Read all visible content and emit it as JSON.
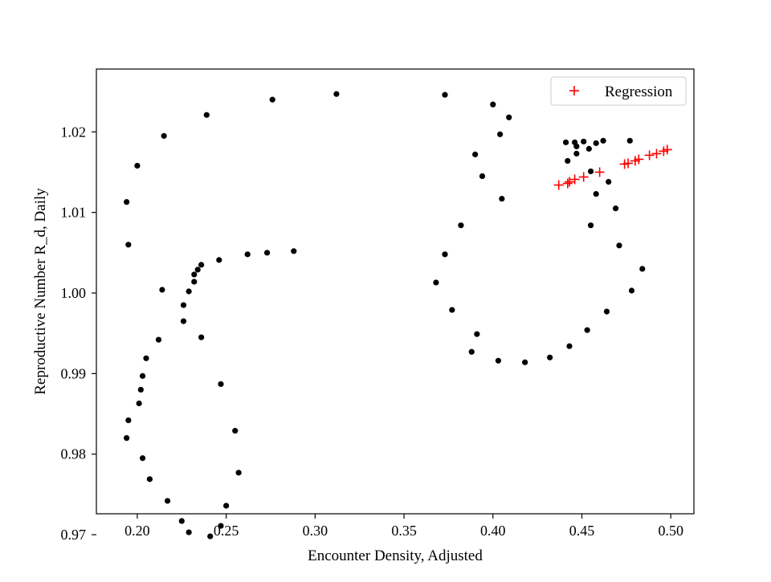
{
  "chart_data": {
    "type": "scatter",
    "title": "",
    "xlabel": "Encounter Density, Adjusted",
    "ylabel": "Reproductive Number R_d, Daily",
    "xlim": [
      0.177,
      0.513
    ],
    "ylim": [
      0.9726,
      1.0278
    ],
    "x_ticks": [
      0.2,
      0.25,
      0.3,
      0.35,
      0.4,
      0.45,
      0.5
    ],
    "x_tick_labels": [
      "0.20",
      "0.25",
      "0.30",
      "0.35",
      "0.40",
      "0.45",
      "0.50"
    ],
    "y_ticks": [
      0.97,
      0.98,
      0.99,
      1.0,
      1.01,
      1.02
    ],
    "y_tick_labels": [
      "0.97",
      "0.98",
      "0.99",
      "1.00",
      "1.01",
      "1.02"
    ],
    "grid": false,
    "legend_position": "upper right",
    "series": [
      {
        "name": "",
        "marker": "dot",
        "color": "#000000",
        "points": [
          [
            0.194,
            1.0113
          ],
          [
            0.195,
            1.006
          ],
          [
            0.2,
            1.0158
          ],
          [
            0.215,
            1.0195
          ],
          [
            0.239,
            1.0221
          ],
          [
            0.276,
            1.024
          ],
          [
            0.312,
            1.0247
          ],
          [
            0.214,
            1.0004
          ],
          [
            0.226,
            0.9985
          ],
          [
            0.229,
            1.0002
          ],
          [
            0.232,
            1.0014
          ],
          [
            0.232,
            1.0023
          ],
          [
            0.234,
            1.0029
          ],
          [
            0.236,
            1.0035
          ],
          [
            0.246,
            1.0041
          ],
          [
            0.262,
            1.0048
          ],
          [
            0.273,
            1.005
          ],
          [
            0.288,
            1.0052
          ],
          [
            0.226,
            0.9965
          ],
          [
            0.236,
            0.9945
          ],
          [
            0.212,
            0.9942
          ],
          [
            0.205,
            0.9919
          ],
          [
            0.203,
            0.9897
          ],
          [
            0.202,
            0.988
          ],
          [
            0.201,
            0.9863
          ],
          [
            0.195,
            0.9842
          ],
          [
            0.194,
            0.982
          ],
          [
            0.203,
            0.9795
          ],
          [
            0.207,
            0.9769
          ],
          [
            0.217,
            0.9742
          ],
          [
            0.225,
            0.9717
          ],
          [
            0.229,
            0.9703
          ],
          [
            0.241,
            0.9698
          ],
          [
            0.247,
            0.9711
          ],
          [
            0.25,
            0.9736
          ],
          [
            0.257,
            0.9777
          ],
          [
            0.255,
            0.9829
          ],
          [
            0.247,
            0.9887
          ],
          [
            0.368,
            1.0013
          ],
          [
            0.373,
            1.0048
          ],
          [
            0.382,
            1.0084
          ],
          [
            0.39,
            1.0172
          ],
          [
            0.394,
            1.0145
          ],
          [
            0.4,
            1.0234
          ],
          [
            0.404,
            1.0197
          ],
          [
            0.405,
            1.0117
          ],
          [
            0.409,
            1.0218
          ],
          [
            0.373,
            1.0246
          ],
          [
            0.377,
            0.9979
          ],
          [
            0.391,
            0.9949
          ],
          [
            0.388,
            0.9927
          ],
          [
            0.403,
            0.9916
          ],
          [
            0.418,
            0.9914
          ],
          [
            0.432,
            0.992
          ],
          [
            0.443,
            0.9934
          ],
          [
            0.453,
            0.9954
          ],
          [
            0.464,
            0.9977
          ],
          [
            0.478,
            1.0003
          ],
          [
            0.484,
            1.003
          ],
          [
            0.471,
            1.0059
          ],
          [
            0.469,
            1.0105
          ],
          [
            0.455,
            1.0084
          ],
          [
            0.458,
            1.0123
          ],
          [
            0.465,
            1.0138
          ],
          [
            0.455,
            1.0151
          ],
          [
            0.441,
            1.0187
          ],
          [
            0.446,
            1.0187
          ],
          [
            0.447,
            1.0182
          ],
          [
            0.451,
            1.0188
          ],
          [
            0.454,
            1.0179
          ],
          [
            0.458,
            1.0186
          ],
          [
            0.462,
            1.0189
          ],
          [
            0.477,
            1.0189
          ],
          [
            0.447,
            1.0173
          ],
          [
            0.442,
            1.0164
          ]
        ]
      },
      {
        "name": "Regression",
        "marker": "plus",
        "color": "#ff0000",
        "points": [
          [
            0.437,
            1.0134
          ],
          [
            0.442,
            1.0136
          ],
          [
            0.443,
            1.0138
          ],
          [
            0.446,
            1.0141
          ],
          [
            0.451,
            1.0144
          ],
          [
            0.46,
            1.015
          ],
          [
            0.474,
            1.016
          ],
          [
            0.476,
            1.0161
          ],
          [
            0.48,
            1.0164
          ],
          [
            0.482,
            1.0166
          ],
          [
            0.488,
            1.0171
          ],
          [
            0.492,
            1.0173
          ],
          [
            0.496,
            1.0176
          ],
          [
            0.498,
            1.0178
          ]
        ]
      }
    ]
  }
}
